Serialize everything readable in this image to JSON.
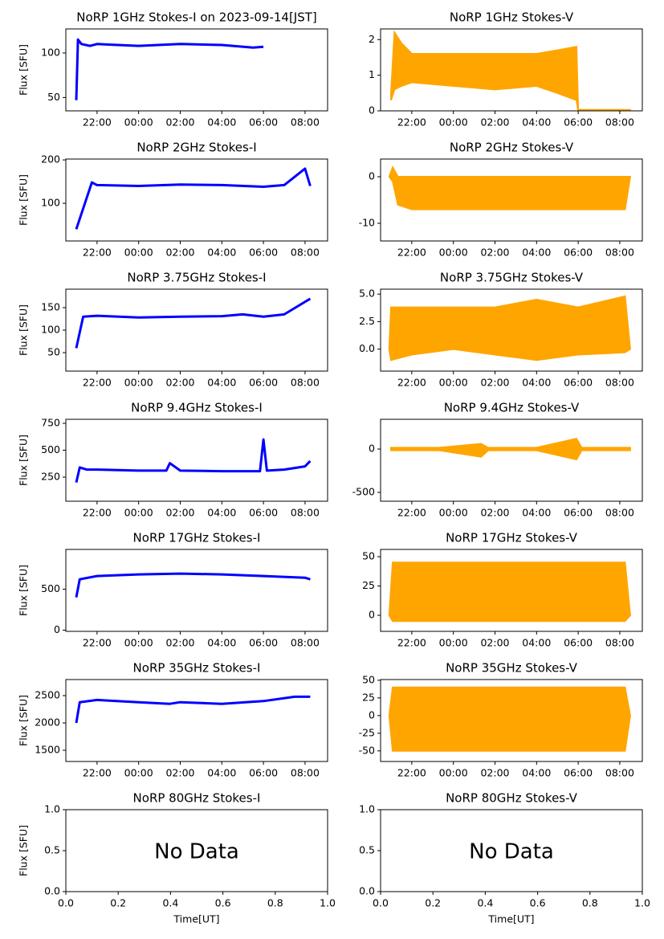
{
  "chart_data": [
    {
      "type": "line",
      "title": "NoRP 1GHz Stokes-I on 2023-09-14[JST]",
      "ylabel": "Flux [SFU]",
      "color": "#0000ff",
      "x": [
        "21:00",
        "21:05",
        "21:15",
        "21:40",
        "22:00",
        "00:00",
        "02:00",
        "04:00",
        "05:30",
        "06:00"
      ],
      "values": [
        47,
        115,
        110,
        108,
        110,
        108,
        110,
        109,
        106,
        107
      ],
      "xlim": [
        "20:30",
        "09:05"
      ],
      "xticks": [
        "22:00",
        "00:00",
        "02:00",
        "04:00",
        "06:00",
        "08:00"
      ],
      "ylim": [
        35,
        127
      ],
      "yticks": [
        50,
        100
      ]
    },
    {
      "type": "band",
      "title": "NoRP 1GHz Stokes-V",
      "color": "#ffa500",
      "x": [
        "21:00",
        "21:10",
        "21:30",
        "22:00",
        "00:00",
        "02:00",
        "04:00",
        "05:00",
        "05:55",
        "06:00",
        "06:05",
        "08:30"
      ],
      "series": [
        {
          "values": [
            0.5,
            2.2,
            1.9,
            1.6,
            1.6,
            1.6,
            1.6,
            1.7,
            1.8,
            0.03,
            0.03,
            0.03
          ]
        },
        {
          "values": [
            0.3,
            0.6,
            0.7,
            0.8,
            0.7,
            0.6,
            0.7,
            0.5,
            0.3,
            0,
            0,
            0
          ]
        }
      ],
      "xlim": [
        "20:30",
        "09:05"
      ],
      "xticks": [
        "22:00",
        "00:00",
        "02:00",
        "04:00",
        "06:00",
        "08:00"
      ],
      "ylim": [
        0,
        2.3
      ],
      "yticks": [
        0,
        1,
        2
      ]
    },
    {
      "type": "line",
      "title": "NoRP 2GHz Stokes-I",
      "ylabel": "Flux [SFU]",
      "color": "#0000ff",
      "x": [
        "21:00",
        "21:45",
        "22:00",
        "00:00",
        "02:00",
        "04:00",
        "06:00",
        "07:00",
        "08:00",
        "08:15"
      ],
      "values": [
        40,
        148,
        142,
        140,
        143,
        142,
        138,
        142,
        180,
        140
      ],
      "xlim": [
        "20:30",
        "09:05"
      ],
      "xticks": [
        "22:00",
        "00:00",
        "02:00",
        "04:00",
        "06:00",
        "08:00"
      ],
      "ylim": [
        13,
        202
      ],
      "yticks": [
        100,
        200
      ]
    },
    {
      "type": "band",
      "title": "NoRP 2GHz Stokes-V",
      "color": "#ffa500",
      "x": [
        "20:55",
        "21:05",
        "21:20",
        "22:00",
        "00:00",
        "02:00",
        "04:00",
        "06:00",
        "08:15",
        "08:30"
      ],
      "series": [
        {
          "values": [
            0,
            2,
            0,
            0,
            0,
            0,
            0,
            0,
            0,
            0
          ]
        },
        {
          "values": [
            0,
            -1,
            -6,
            -7,
            -7,
            -7,
            -7,
            -7,
            -7,
            0
          ]
        }
      ],
      "xlim": [
        "20:30",
        "09:05"
      ],
      "xticks": [
        "22:00",
        "00:00",
        "02:00",
        "04:00",
        "06:00",
        "08:00"
      ],
      "ylim": [
        -13.8,
        3.8
      ],
      "yticks": [
        -10,
        0
      ]
    },
    {
      "type": "line",
      "title": "NoRP 3.75GHz Stokes-I",
      "ylabel": "Flux [SFU]",
      "color": "#0000ff",
      "x": [
        "21:00",
        "21:20",
        "22:00",
        "00:00",
        "02:00",
        "04:00",
        "05:00",
        "06:00",
        "07:00",
        "08:15"
      ],
      "values": [
        60,
        130,
        132,
        128,
        130,
        131,
        135,
        130,
        135,
        170
      ],
      "xlim": [
        "20:30",
        "09:05"
      ],
      "xticks": [
        "22:00",
        "00:00",
        "02:00",
        "04:00",
        "06:00",
        "08:00"
      ],
      "ylim": [
        9,
        191
      ],
      "yticks": [
        50,
        100,
        150
      ]
    },
    {
      "type": "band",
      "title": "NoRP 3.75GHz Stokes-V",
      "color": "#ffa500",
      "x": [
        "20:55",
        "21:00",
        "22:00",
        "00:00",
        "02:00",
        "04:00",
        "06:00",
        "08:15",
        "08:30"
      ],
      "series": [
        {
          "values": [
            0,
            3.8,
            3.8,
            3.8,
            3.8,
            4.5,
            3.8,
            4.8,
            0
          ]
        },
        {
          "values": [
            0,
            -1,
            -0.5,
            0,
            -0.5,
            -1,
            -0.5,
            -0.3,
            0
          ]
        }
      ],
      "xlim": [
        "20:30",
        "09:05"
      ],
      "xticks": [
        "22:00",
        "00:00",
        "02:00",
        "04:00",
        "06:00",
        "08:00"
      ],
      "ylim": [
        -2,
        5.45
      ],
      "yticks": [
        {
          "value": 0,
          "label": "0.0"
        },
        {
          "value": 2.5,
          "label": "2.5"
        },
        {
          "value": 5,
          "label": "5.0"
        }
      ]
    },
    {
      "type": "line",
      "title": "NoRP 9.4GHz Stokes-I",
      "ylabel": "Flux [SFU]",
      "color": "#0000ff",
      "x": [
        "21:00",
        "21:10",
        "21:30",
        "22:00",
        "00:00",
        "01:20",
        "01:30",
        "02:00",
        "04:00",
        "05:50",
        "06:00",
        "06:10",
        "07:00",
        "08:00",
        "08:15"
      ],
      "values": [
        200,
        340,
        320,
        320,
        310,
        310,
        380,
        310,
        305,
        305,
        600,
        310,
        320,
        350,
        400
      ],
      "xlim": [
        "20:30",
        "09:05"
      ],
      "xticks": [
        "22:00",
        "00:00",
        "02:00",
        "04:00",
        "06:00",
        "08:00"
      ],
      "ylim": [
        26,
        787
      ],
      "yticks": [
        250,
        500,
        750
      ]
    },
    {
      "type": "band",
      "title": "NoRP 9.4GHz Stokes-V",
      "color": "#ffa500",
      "x": [
        "21:00",
        "23:20",
        "01:20",
        "01:40",
        "04:00",
        "05:55",
        "06:10",
        "08:30"
      ],
      "series": [
        {
          "values": [
            15,
            15,
            60,
            15,
            15,
            120,
            15,
            15
          ]
        },
        {
          "values": [
            -15,
            -15,
            -90,
            -15,
            -15,
            -120,
            -15,
            -15
          ]
        }
      ],
      "xlim": [
        "20:30",
        "09:05"
      ],
      "xticks": [
        "22:00",
        "00:00",
        "02:00",
        "04:00",
        "06:00",
        "08:00"
      ],
      "ylim": [
        -602,
        343
      ],
      "yticks": [
        -500,
        0
      ]
    },
    {
      "type": "line",
      "title": "NoRP 17GHz Stokes-I",
      "ylabel": "Flux [SFU]",
      "color": "#0000ff",
      "x": [
        "21:00",
        "21:10",
        "22:00",
        "00:00",
        "02:00",
        "04:00",
        "06:00",
        "08:00",
        "08:15"
      ],
      "values": [
        400,
        620,
        660,
        680,
        690,
        680,
        660,
        640,
        620
      ],
      "xlim": [
        "20:30",
        "09:05"
      ],
      "xticks": [
        "22:00",
        "00:00",
        "02:00",
        "04:00",
        "06:00",
        "08:00"
      ],
      "ylim": [
        -15,
        985
      ],
      "yticks": [
        0,
        500
      ]
    },
    {
      "type": "band",
      "title": "NoRP 17GHz Stokes-V",
      "color": "#ffa500",
      "x": [
        "20:55",
        "21:05",
        "08:15",
        "08:30"
      ],
      "series": [
        {
          "values": [
            0,
            45,
            45,
            0
          ]
        },
        {
          "values": [
            0,
            -5,
            -5,
            0
          ]
        }
      ],
      "xlim": [
        "20:30",
        "09:05"
      ],
      "xticks": [
        "22:00",
        "00:00",
        "02:00",
        "04:00",
        "06:00",
        "08:00"
      ],
      "ylim": [
        -13.7,
        56.2
      ],
      "yticks": [
        0,
        25,
        50
      ]
    },
    {
      "type": "line",
      "title": "NoRP 35GHz Stokes-I",
      "ylabel": "Flux [SFU]",
      "color": "#0000ff",
      "x": [
        "21:00",
        "21:10",
        "22:00",
        "00:00",
        "01:30",
        "02:00",
        "04:00",
        "06:00",
        "07:30",
        "08:15"
      ],
      "values": [
        2000,
        2380,
        2420,
        2380,
        2350,
        2380,
        2350,
        2400,
        2480,
        2480
      ],
      "xlim": [
        "20:30",
        "09:05"
      ],
      "xticks": [
        "22:00",
        "00:00",
        "02:00",
        "04:00",
        "06:00",
        "08:00"
      ],
      "ylim": [
        1294,
        2794
      ],
      "yticks": [
        1500,
        2000,
        2500
      ]
    },
    {
      "type": "band",
      "title": "NoRP 35GHz Stokes-V",
      "color": "#ffa500",
      "x": [
        "20:55",
        "21:05",
        "08:15",
        "08:30"
      ],
      "series": [
        {
          "values": [
            0,
            40,
            40,
            0
          ]
        },
        {
          "values": [
            0,
            -50,
            -50,
            0
          ]
        }
      ],
      "xlim": [
        "20:30",
        "09:05"
      ],
      "xticks": [
        "22:00",
        "00:00",
        "02:00",
        "04:00",
        "06:00",
        "08:00"
      ],
      "ylim": [
        -65,
        51
      ],
      "yticks": [
        -50,
        -25,
        0,
        25,
        50
      ]
    },
    {
      "type": "empty",
      "title": "NoRP 80GHz Stokes-I",
      "ylabel": "Flux [SFU]",
      "xlabel": "Time[UT]",
      "annotation": "No Data",
      "xlim": [
        0,
        1
      ],
      "xticks": [
        {
          "value": 0,
          "label": "0.0"
        },
        {
          "value": 0.2,
          "label": "0.2"
        },
        {
          "value": 0.4,
          "label": "0.4"
        },
        {
          "value": 0.6,
          "label": "0.6"
        },
        {
          "value": 0.8,
          "label": "0.8"
        },
        {
          "value": 1,
          "label": "1.0"
        }
      ],
      "ylim": [
        0,
        1
      ],
      "yticks": [
        {
          "value": 0,
          "label": "0.0"
        },
        {
          "value": 0.5,
          "label": "0.5"
        },
        {
          "value": 1,
          "label": "1.0"
        }
      ]
    },
    {
      "type": "empty",
      "title": "NoRP 80GHz Stokes-V",
      "xlabel": "Time[UT]",
      "annotation": "No Data",
      "xlim": [
        0,
        1
      ],
      "xticks": [
        {
          "value": 0,
          "label": "0.0"
        },
        {
          "value": 0.2,
          "label": "0.2"
        },
        {
          "value": 0.4,
          "label": "0.4"
        },
        {
          "value": 0.6,
          "label": "0.6"
        },
        {
          "value": 0.8,
          "label": "0.8"
        },
        {
          "value": 1,
          "label": "1.0"
        }
      ],
      "ylim": [
        0,
        1
      ],
      "yticks": [
        {
          "value": 0,
          "label": "0.0"
        },
        {
          "value": 0.5,
          "label": "0.5"
        },
        {
          "value": 1,
          "label": "1.0"
        }
      ]
    }
  ]
}
